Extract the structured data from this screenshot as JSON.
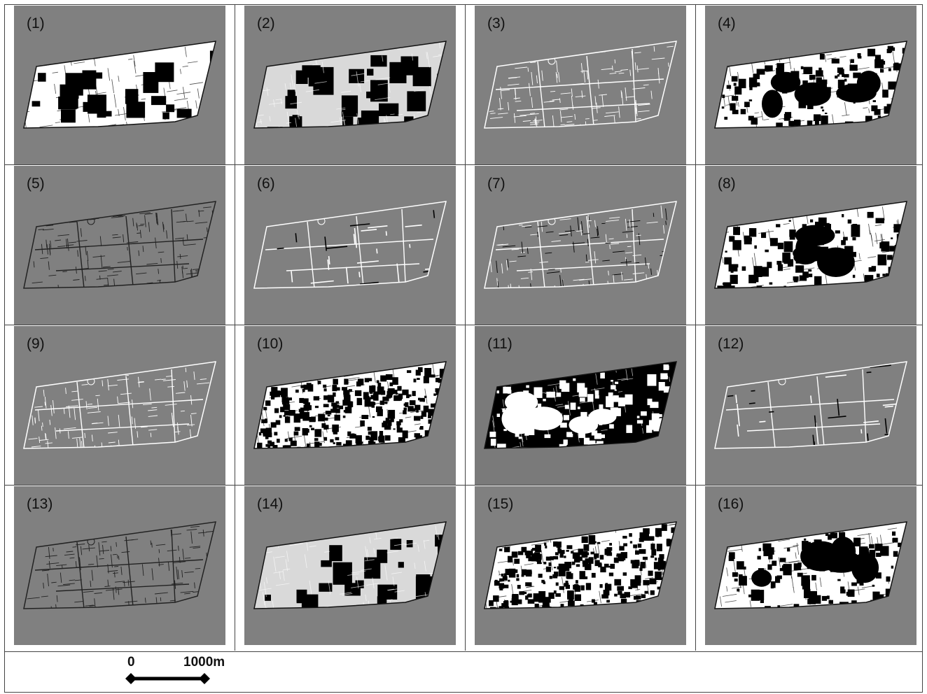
{
  "panels": [
    {
      "label": "(1)",
      "style": "blocks-white"
    },
    {
      "label": "(2)",
      "style": "blocks-light"
    },
    {
      "label": "(3)",
      "style": "lines-light"
    },
    {
      "label": "(4)",
      "style": "dense-white"
    },
    {
      "label": "(5)",
      "style": "lines-dark"
    },
    {
      "label": "(6)",
      "style": "lines-sparse"
    },
    {
      "label": "(7)",
      "style": "lines-mixed"
    },
    {
      "label": "(8)",
      "style": "dense-white"
    },
    {
      "label": "(9)",
      "style": "lines-light"
    },
    {
      "label": "(10)",
      "style": "speckle"
    },
    {
      "label": "(11)",
      "style": "dense-black"
    },
    {
      "label": "(12)",
      "style": "lines-sparse"
    },
    {
      "label": "(13)",
      "style": "lines-dark"
    },
    {
      "label": "(14)",
      "style": "blocks-light"
    },
    {
      "label": "(15)",
      "style": "speckle"
    },
    {
      "label": "(16)",
      "style": "dense-white"
    }
  ],
  "scale": {
    "start": "0",
    "end": "1000m"
  },
  "colors": {
    "panel_bg": "#808080",
    "white": "#ffffff",
    "black": "#000000",
    "light": "#d9d9d9"
  }
}
